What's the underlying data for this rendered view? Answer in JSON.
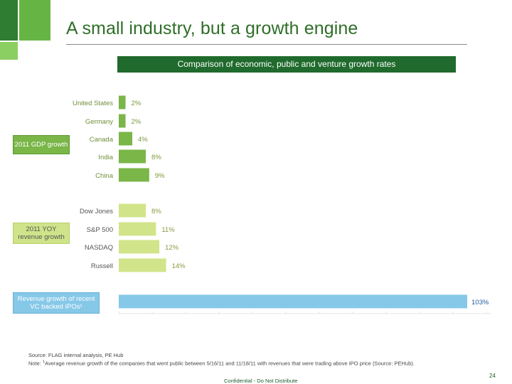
{
  "title": "A small industry, but a growth engine",
  "chart_data": {
    "type": "bar",
    "orientation": "horizontal",
    "title": "Comparison of economic, public and venture growth rates",
    "categories": [
      "United States",
      "Germany",
      "Canada",
      "India",
      "China",
      "Dow Jones",
      "S&P 500",
      "NASDAQ",
      "Russell",
      ""
    ],
    "values": [
      2,
      2,
      4,
      8,
      9,
      8,
      11,
      12,
      14,
      103
    ],
    "value_labels": [
      "2%",
      "2%",
      "4%",
      "8%",
      "9%",
      "8%",
      "11%",
      "12%",
      "14%",
      "103%"
    ],
    "groups": [
      {
        "label": "2011 GDP growth",
        "color": "#7ab648"
      },
      {
        "label": "2011 YOY revenue growth",
        "color": "#d2e48a"
      },
      {
        "label": "Revenue growth of recent VC backed IPOs¹",
        "color": "#86c8e8"
      }
    ],
    "bar_groups": [
      0,
      0,
      0,
      0,
      0,
      1,
      1,
      1,
      1,
      2
    ],
    "xlim": [
      0,
      103
    ],
    "xlabel": "",
    "ylabel": ""
  },
  "footer": {
    "source": "Source: FLAG internal analysis, PE Hub",
    "note_prefix": "Note: ",
    "note_marker": "1",
    "note_text": "Average revenue growth of the companies that went public between 5/16/11 and 11/18/11 with revenues that were trading above IPO price (Source: PEHub).",
    "confidential": "Confidential - Do Not Distribute",
    "page_number": "24"
  }
}
